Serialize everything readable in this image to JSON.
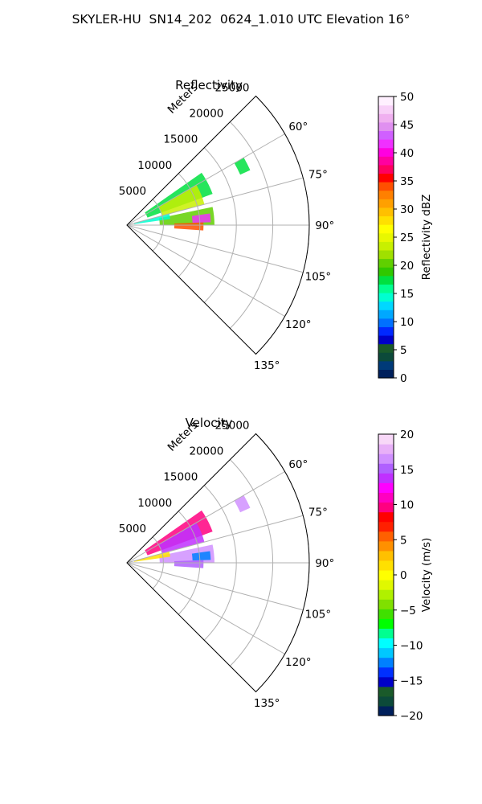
{
  "figure": {
    "suptitle": "SKYLER-HU  SN14_202  0624_1.010 UTC Elevation 16°"
  },
  "chart_data": [
    {
      "type": "heatmap",
      "title": "Reflectivity",
      "projection": "polar sector",
      "azimuth_range_deg": [
        45,
        135
      ],
      "azimuth_ticks": [
        "60°",
        "75°",
        "90°",
        "105°",
        "120°",
        "135°"
      ],
      "range_label": "Meters",
      "range_ticks": [
        "5000",
        "10000",
        "15000",
        "20000",
        "25000"
      ],
      "range_max_m": 25000,
      "grid": true,
      "colorbar": {
        "label": "Reflectivity dBZ",
        "range": [
          0,
          50
        ],
        "ticks": [
          "0",
          "5",
          "10",
          "15",
          "20",
          "25",
          "30",
          "35",
          "40",
          "45",
          "50"
        ],
        "colors": [
          "#00205c",
          "#003a78",
          "#0c4a3a",
          "#1a5a2a",
          "#0000c8",
          "#0028ff",
          "#0070ff",
          "#00a8ff",
          "#00d8ff",
          "#00ffd0",
          "#00ff90",
          "#00e040",
          "#30c800",
          "#60d000",
          "#a0e000",
          "#c8f000",
          "#e8f800",
          "#ffff00",
          "#ffe000",
          "#ffc000",
          "#ffa000",
          "#ff8000",
          "#ff5000",
          "#ff0000",
          "#ff0060",
          "#ff00a0",
          "#ff00e0",
          "#f030ff",
          "#d060ff",
          "#e090f0",
          "#f0b0f0",
          "#f8d0f8",
          "#fff0ff"
        ]
      },
      "echo_regions": [
        {
          "az": [
            55,
            70
          ],
          "r": [
            3000,
            12500
          ],
          "value": 18
        },
        {
          "az": [
            60,
            75
          ],
          "r": [
            5000,
            11000
          ],
          "value": 24
        },
        {
          "az": [
            78,
            90
          ],
          "r": [
            4500,
            12000
          ],
          "value": 20
        },
        {
          "az": [
            82,
            88
          ],
          "r": [
            9000,
            11500
          ],
          "value": 42
        },
        {
          "az": [
            88,
            94
          ],
          "r": [
            6500,
            10500
          ],
          "value": 34
        },
        {
          "az": [
            60,
            66
          ],
          "r": [
            17000,
            18500
          ],
          "value": 18
        },
        {
          "az": [
            75,
            82
          ],
          "r": [
            1000,
            6000
          ],
          "value": 15
        }
      ]
    },
    {
      "type": "heatmap",
      "title": "Velocity",
      "projection": "polar sector",
      "azimuth_range_deg": [
        45,
        135
      ],
      "azimuth_ticks": [
        "60°",
        "75°",
        "90°",
        "105°",
        "120°",
        "135°"
      ],
      "range_label": "Meters",
      "range_ticks": [
        "5000",
        "10000",
        "15000",
        "20000",
        "25000"
      ],
      "range_max_m": 25000,
      "grid": true,
      "colorbar": {
        "label": "Velocity (m/s)",
        "range": [
          -20,
          20
        ],
        "ticks": [
          "−20",
          "−15",
          "−10",
          "−5",
          "0",
          "5",
          "10",
          "15",
          "20"
        ],
        "colors": [
          "#00205c",
          "#0c4a3a",
          "#1a5a2a",
          "#0000c8",
          "#0030ff",
          "#0080ff",
          "#00c8ff",
          "#00ffff",
          "#00ff90",
          "#00ff00",
          "#40e000",
          "#80e000",
          "#b0f000",
          "#e0f800",
          "#ffff00",
          "#ffe000",
          "#ffc000",
          "#ff9000",
          "#ff6000",
          "#ff2000",
          "#ff0000",
          "#ff0080",
          "#ff00c0",
          "#ff00ff",
          "#c030ff",
          "#b060ff",
          "#d090ff",
          "#e8b0f8",
          "#f8d8f8"
        ]
      },
      "echo_regions": [
        {
          "az": [
            55,
            70
          ],
          "r": [
            3000,
            12500
          ],
          "value": 10
        },
        {
          "az": [
            60,
            75
          ],
          "r": [
            5000,
            11000
          ],
          "value": 14
        },
        {
          "az": [
            78,
            90
          ],
          "r": [
            4500,
            12000
          ],
          "value": 16
        },
        {
          "az": [
            82,
            88
          ],
          "r": [
            9000,
            11500
          ],
          "value": -12
        },
        {
          "az": [
            88,
            94
          ],
          "r": [
            6500,
            10500
          ],
          "value": 15
        },
        {
          "az": [
            60,
            66
          ],
          "r": [
            17000,
            18500
          ],
          "value": 16
        },
        {
          "az": [
            75,
            82
          ],
          "r": [
            1000,
            6000
          ],
          "value": 2
        }
      ]
    }
  ]
}
